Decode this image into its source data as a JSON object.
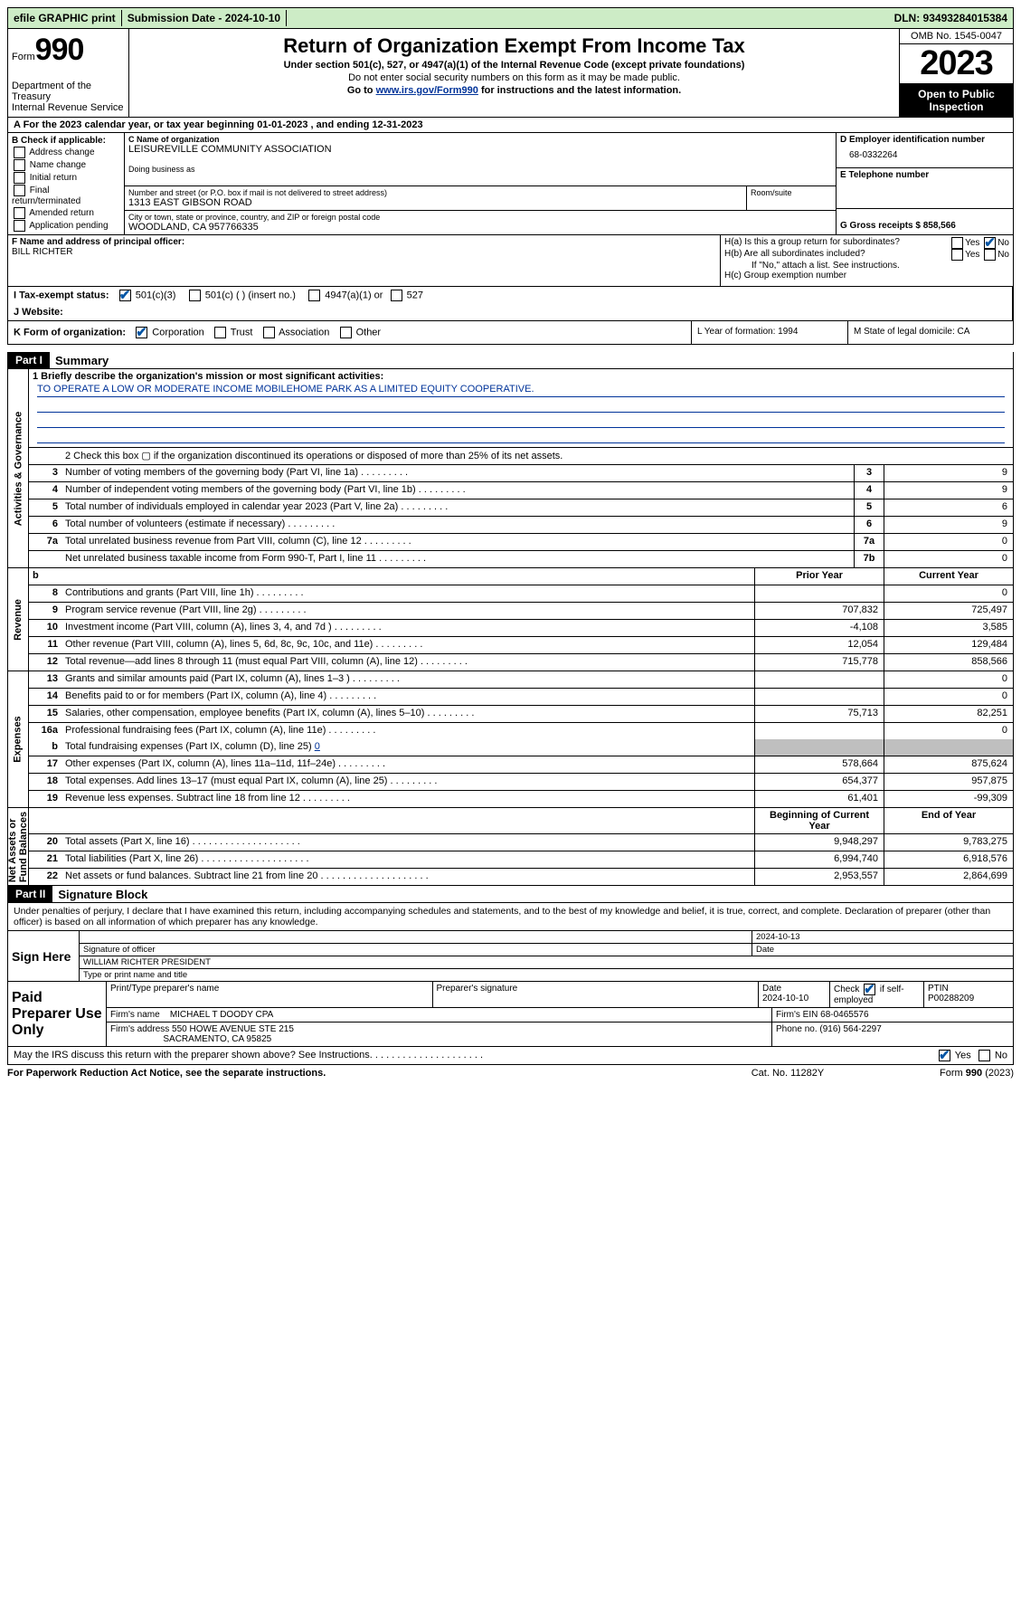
{
  "topbar": {
    "efile": "efile GRAPHIC print",
    "submission": "Submission Date - 2024-10-10",
    "dln": "DLN: 93493284015384"
  },
  "header": {
    "form_label": "Form",
    "form_num": "990",
    "dept": "Department of the Treasury",
    "irs": "Internal Revenue Service",
    "title": "Return of Organization Exempt From Income Tax",
    "sub1": "Under section 501(c), 527, or 4947(a)(1) of the Internal Revenue Code (except private foundations)",
    "sub2": "Do not enter social security numbers on this form as it may be made public.",
    "sub3_pre": "Go to ",
    "sub3_link": "www.irs.gov/Form990",
    "sub3_post": " for instructions and the latest information.",
    "omb": "OMB No. 1545-0047",
    "year": "2023",
    "open": "Open to Public Inspection"
  },
  "rowA": "A   For the 2023 calendar year, or tax year beginning 01-01-2023    , and ending 12-31-2023",
  "colB": {
    "hdr": "B Check if applicable:",
    "items": [
      "Address change",
      "Name change",
      "Initial return",
      "Final return/terminated",
      "Amended return",
      "Application pending"
    ]
  },
  "entity": {
    "c_label": "C Name of organization",
    "c_val": "LEISUREVILLE COMMUNITY ASSOCIATION",
    "dba_label": "Doing business as",
    "addr_label": "Number and street (or P.O. box if mail is not delivered to street address)",
    "room_label": "Room/suite",
    "addr_val": "1313 EAST GIBSON ROAD",
    "city_label": "City or town, state or province, country, and ZIP or foreign postal code",
    "city_val": "WOODLAND, CA  957766335",
    "d_label": "D Employer identification number",
    "d_val": "68-0332264",
    "e_label": "E Telephone number",
    "g_label": "G Gross receipts $ 858,566"
  },
  "fh": {
    "f_label": "F  Name and address of principal officer:",
    "f_val": "BILL RICHTER",
    "ha_label": "H(a)  Is this a group return for subordinates?",
    "hb_label": "H(b)  Are all subordinates included?",
    "hb_note": "If \"No,\" attach a list. See instructions.",
    "hc_label": "H(c)  Group exemption number",
    "yes": "Yes",
    "no": "No"
  },
  "rowI": {
    "label": "I   Tax-exempt status:",
    "opts": [
      "501(c)(3)",
      "501(c) (  ) (insert no.)",
      "4947(a)(1) or",
      "527"
    ]
  },
  "rowJ": {
    "label": "J   Website:"
  },
  "rowK": {
    "label": "K Form of organization:",
    "opts": [
      "Corporation",
      "Trust",
      "Association",
      "Other"
    ],
    "L": "L Year of formation: 1994",
    "M": "M State of legal domicile: CA"
  },
  "part1": {
    "num": "Part I",
    "title": "Summary"
  },
  "mission": {
    "line1_label": "1   Briefly describe the organization's mission or most significant activities:",
    "line1_val": "TO OPERATE A LOW OR MODERATE INCOME MOBILEHOME PARK AS A LIMITED EQUITY COOPERATIVE."
  },
  "gov": {
    "l2": "2   Check this box  ▢  if the organization discontinued its operations or disposed of more than 25% of its net assets.",
    "rows": [
      {
        "n": "3",
        "d": "Number of voting members of the governing body (Part VI, line 1a)",
        "b": "3",
        "v": "9"
      },
      {
        "n": "4",
        "d": "Number of independent voting members of the governing body (Part VI, line 1b)",
        "b": "4",
        "v": "9"
      },
      {
        "n": "5",
        "d": "Total number of individuals employed in calendar year 2023 (Part V, line 2a)",
        "b": "5",
        "v": "6"
      },
      {
        "n": "6",
        "d": "Total number of volunteers (estimate if necessary)",
        "b": "6",
        "v": "9"
      },
      {
        "n": "7a",
        "d": "Total unrelated business revenue from Part VIII, column (C), line 12",
        "b": "7a",
        "v": "0"
      },
      {
        "n": "",
        "d": "Net unrelated business taxable income from Form 990-T, Part I, line 11",
        "b": "7b",
        "v": "0"
      }
    ]
  },
  "rev": {
    "hdr_b": "b",
    "hdr_prior": "Prior Year",
    "hdr_curr": "Current Year",
    "rows": [
      {
        "n": "8",
        "d": "Contributions and grants (Part VIII, line 1h)",
        "p": "",
        "c": "0"
      },
      {
        "n": "9",
        "d": "Program service revenue (Part VIII, line 2g)",
        "p": "707,832",
        "c": "725,497"
      },
      {
        "n": "10",
        "d": "Investment income (Part VIII, column (A), lines 3, 4, and 7d )",
        "p": "-4,108",
        "c": "3,585"
      },
      {
        "n": "11",
        "d": "Other revenue (Part VIII, column (A), lines 5, 6d, 8c, 9c, 10c, and 11e)",
        "p": "12,054",
        "c": "129,484"
      },
      {
        "n": "12",
        "d": "Total revenue—add lines 8 through 11 (must equal Part VIII, column (A), line 12)",
        "p": "715,778",
        "c": "858,566"
      }
    ]
  },
  "exp": {
    "rows": [
      {
        "n": "13",
        "d": "Grants and similar amounts paid (Part IX, column (A), lines 1–3 )",
        "p": "",
        "c": "0"
      },
      {
        "n": "14",
        "d": "Benefits paid to or for members (Part IX, column (A), line 4)",
        "p": "",
        "c": "0"
      },
      {
        "n": "15",
        "d": "Salaries, other compensation, employee benefits (Part IX, column (A), lines 5–10)",
        "p": "75,713",
        "c": "82,251"
      },
      {
        "n": "16a",
        "d": "Professional fundraising fees (Part IX, column (A), line 11e)",
        "p": "",
        "c": "0"
      }
    ],
    "row_b": {
      "n": "b",
      "d_pre": "Total fundraising expenses (Part IX, column (D), line 25) ",
      "d_val": "0"
    },
    "rows2": [
      {
        "n": "17",
        "d": "Other expenses (Part IX, column (A), lines 11a–11d, 11f–24e)",
        "p": "578,664",
        "c": "875,624"
      },
      {
        "n": "18",
        "d": "Total expenses. Add lines 13–17 (must equal Part IX, column (A), line 25)",
        "p": "654,377",
        "c": "957,875"
      },
      {
        "n": "19",
        "d": "Revenue less expenses. Subtract line 18 from line 12",
        "p": "61,401",
        "c": "-99,309"
      }
    ]
  },
  "net": {
    "hdr_b": "Beginning of Current Year",
    "hdr_e": "End of Year",
    "rows": [
      {
        "n": "20",
        "d": "Total assets (Part X, line 16)",
        "p": "9,948,297",
        "c": "9,783,275"
      },
      {
        "n": "21",
        "d": "Total liabilities (Part X, line 26)",
        "p": "6,994,740",
        "c": "6,918,576"
      },
      {
        "n": "22",
        "d": "Net assets or fund balances. Subtract line 21 from line 20",
        "p": "2,953,557",
        "c": "2,864,699"
      }
    ]
  },
  "part2": {
    "num": "Part II",
    "title": "Signature Block"
  },
  "sig": {
    "jurat": "Under penalties of perjury, I declare that I have examined this return, including accompanying schedules and statements, and to the best of my knowledge and belief, it is true, correct, and complete. Declaration of preparer (other than officer) is based on all information of which preparer has any knowledge.",
    "sign_here": "Sign Here",
    "date1": "2024-10-13",
    "sig_label": "Signature of officer",
    "date_label": "Date",
    "officer": "WILLIAM RICHTER  PRESIDENT",
    "type_label": "Type or print name and title"
  },
  "prep": {
    "label": "Paid Preparer Use Only",
    "h1": "Print/Type preparer's name",
    "h2": "Preparer's signature",
    "h3": "Date",
    "h3v": "2024-10-10",
    "h4_pre": "Check",
    "h4_post": "if self-employed",
    "h5": "PTIN",
    "h5v": "P00288209",
    "firm_label": "Firm's name",
    "firm_val": "MICHAEL T DOODY CPA",
    "ein_label": "Firm's EIN  68-0465576",
    "addr_label": "Firm's address",
    "addr1": "550 HOWE AVENUE STE 215",
    "addr2": "SACRAMENTO, CA  95825",
    "phone_label": "Phone no. (916) 564-2297"
  },
  "discuss": {
    "q": "May the IRS discuss this return with the preparer shown above? See Instructions.",
    "yes": "Yes",
    "no": "No"
  },
  "foot": {
    "left": "For Paperwork Reduction Act Notice, see the separate instructions.",
    "mid": "Cat. No. 11282Y",
    "right": "Form 990 (2023)"
  }
}
